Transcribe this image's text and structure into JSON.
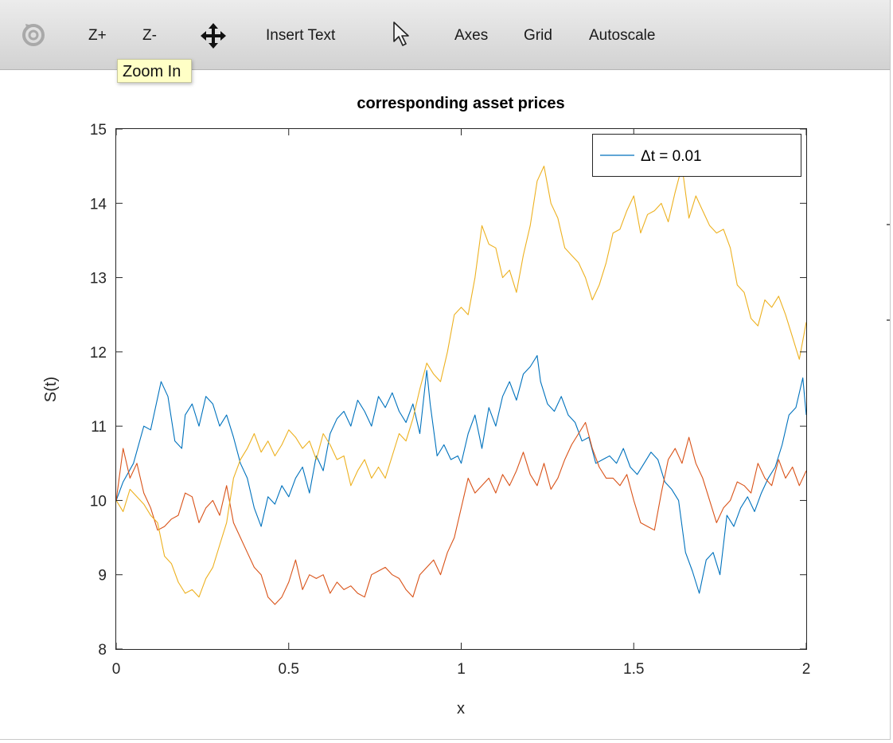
{
  "toolbar": {
    "items": [
      {
        "label": "Z+"
      },
      {
        "label": "Z-"
      },
      {
        "label": "Insert Text"
      },
      {
        "label": "Axes"
      },
      {
        "label": "Grid"
      },
      {
        "label": "Autoscale"
      }
    ],
    "tooltip": "Zoom In"
  },
  "chart_data": {
    "type": "line",
    "title": "corresponding asset prices",
    "xlabel": "x",
    "ylabel": "S(t)",
    "xlim": [
      0,
      2
    ],
    "ylim": [
      8,
      15
    ],
    "xticks": [
      0,
      0.5,
      1,
      1.5,
      2
    ],
    "xtick_labels": [
      "0",
      "0.5",
      "1",
      "1.5",
      "2"
    ],
    "yticks": [
      8,
      9,
      10,
      11,
      12,
      13,
      14,
      15
    ],
    "ytick_labels": [
      "8",
      "9",
      "10",
      "11",
      "12",
      "13",
      "14",
      "15"
    ],
    "grid": false,
    "legend": {
      "placement": "top-right",
      "entries": [
        "Δt = 0.01"
      ]
    },
    "series": [
      {
        "color": "#0072bd",
        "x": [
          0,
          0.02,
          0.05,
          0.08,
          0.1,
          0.13,
          0.15,
          0.17,
          0.19,
          0.2,
          0.22,
          0.24,
          0.26,
          0.28,
          0.3,
          0.32,
          0.34,
          0.36,
          0.38,
          0.4,
          0.42,
          0.44,
          0.46,
          0.48,
          0.5,
          0.52,
          0.54,
          0.56,
          0.58,
          0.6,
          0.62,
          0.64,
          0.66,
          0.68,
          0.7,
          0.72,
          0.74,
          0.76,
          0.78,
          0.8,
          0.82,
          0.84,
          0.86,
          0.88,
          0.9,
          0.91,
          0.93,
          0.95,
          0.97,
          0.99,
          1.0,
          1.02,
          1.04,
          1.06,
          1.08,
          1.1,
          1.12,
          1.14,
          1.16,
          1.18,
          1.2,
          1.22,
          1.23,
          1.25,
          1.27,
          1.29,
          1.31,
          1.33,
          1.35,
          1.37,
          1.39,
          1.41,
          1.43,
          1.45,
          1.47,
          1.49,
          1.51,
          1.53,
          1.55,
          1.57,
          1.59,
          1.61,
          1.63,
          1.65,
          1.67,
          1.69,
          1.71,
          1.73,
          1.75,
          1.77,
          1.79,
          1.81,
          1.83,
          1.85,
          1.87,
          1.89,
          1.91,
          1.93,
          1.95,
          1.97,
          1.99,
          2.0
        ],
        "y": [
          10.0,
          10.25,
          10.5,
          11.0,
          10.95,
          11.6,
          11.4,
          10.8,
          10.7,
          11.15,
          11.3,
          11.0,
          11.4,
          11.3,
          11.0,
          11.15,
          10.85,
          10.5,
          10.3,
          9.9,
          9.65,
          10.05,
          9.95,
          10.2,
          10.05,
          10.3,
          10.45,
          10.1,
          10.6,
          10.4,
          10.9,
          11.1,
          11.2,
          11.0,
          11.35,
          11.2,
          11.0,
          11.4,
          11.25,
          11.45,
          11.2,
          11.05,
          11.3,
          10.9,
          11.75,
          11.3,
          10.6,
          10.75,
          10.55,
          10.6,
          10.5,
          10.9,
          11.15,
          10.7,
          11.25,
          11.0,
          11.4,
          11.6,
          11.35,
          11.7,
          11.8,
          11.95,
          11.6,
          11.3,
          11.2,
          11.4,
          11.15,
          11.05,
          10.8,
          10.85,
          10.5,
          10.55,
          10.6,
          10.5,
          10.7,
          10.45,
          10.35,
          10.5,
          10.65,
          10.55,
          10.25,
          10.15,
          10.0,
          9.3,
          9.05,
          8.75,
          9.2,
          9.3,
          9.0,
          9.8,
          9.65,
          9.9,
          10.05,
          9.85,
          10.1,
          10.3,
          10.45,
          10.75,
          11.15,
          11.25,
          11.65,
          11.15
        ]
      },
      {
        "color": "#d95319",
        "x": [
          0,
          0.02,
          0.04,
          0.06,
          0.08,
          0.1,
          0.12,
          0.14,
          0.16,
          0.18,
          0.2,
          0.22,
          0.24,
          0.26,
          0.28,
          0.3,
          0.32,
          0.34,
          0.36,
          0.38,
          0.4,
          0.42,
          0.44,
          0.46,
          0.48,
          0.5,
          0.52,
          0.54,
          0.56,
          0.58,
          0.6,
          0.62,
          0.64,
          0.66,
          0.68,
          0.7,
          0.72,
          0.74,
          0.76,
          0.78,
          0.8,
          0.82,
          0.84,
          0.86,
          0.88,
          0.9,
          0.92,
          0.94,
          0.96,
          0.98,
          1.0,
          1.02,
          1.04,
          1.06,
          1.08,
          1.1,
          1.12,
          1.14,
          1.16,
          1.18,
          1.2,
          1.22,
          1.24,
          1.26,
          1.28,
          1.3,
          1.32,
          1.34,
          1.36,
          1.38,
          1.4,
          1.42,
          1.44,
          1.46,
          1.48,
          1.5,
          1.52,
          1.54,
          1.56,
          1.58,
          1.6,
          1.62,
          1.64,
          1.66,
          1.68,
          1.7,
          1.72,
          1.74,
          1.76,
          1.78,
          1.8,
          1.82,
          1.84,
          1.86,
          1.88,
          1.9,
          1.92,
          1.94,
          1.96,
          1.98,
          2.0
        ],
        "y": [
          10.0,
          10.7,
          10.3,
          10.5,
          10.1,
          9.9,
          9.6,
          9.65,
          9.75,
          9.8,
          10.1,
          10.05,
          9.7,
          9.9,
          10.0,
          9.8,
          10.2,
          9.7,
          9.5,
          9.3,
          9.1,
          9.0,
          8.7,
          8.6,
          8.7,
          8.9,
          9.2,
          8.8,
          9.0,
          8.95,
          9.0,
          8.75,
          8.9,
          8.8,
          8.85,
          8.75,
          8.7,
          9.0,
          9.05,
          9.1,
          9.0,
          8.95,
          8.8,
          8.7,
          9.0,
          9.1,
          9.2,
          9.0,
          9.3,
          9.5,
          9.9,
          10.3,
          10.1,
          10.2,
          10.3,
          10.1,
          10.35,
          10.2,
          10.4,
          10.65,
          10.35,
          10.2,
          10.5,
          10.15,
          10.3,
          10.55,
          10.75,
          10.9,
          11.05,
          10.7,
          10.45,
          10.3,
          10.3,
          10.2,
          10.35,
          10.0,
          9.7,
          9.65,
          9.6,
          10.1,
          10.55,
          10.7,
          10.5,
          10.85,
          10.5,
          10.3,
          10.0,
          9.7,
          9.9,
          10.0,
          10.25,
          10.2,
          10.1,
          10.5,
          10.3,
          10.2,
          10.55,
          10.3,
          10.45,
          10.2,
          10.4
        ]
      },
      {
        "color": "#edb120",
        "x": [
          0,
          0.02,
          0.04,
          0.06,
          0.08,
          0.1,
          0.12,
          0.14,
          0.16,
          0.18,
          0.2,
          0.22,
          0.24,
          0.26,
          0.28,
          0.3,
          0.32,
          0.34,
          0.36,
          0.38,
          0.4,
          0.42,
          0.44,
          0.46,
          0.48,
          0.5,
          0.52,
          0.54,
          0.56,
          0.58,
          0.6,
          0.62,
          0.64,
          0.66,
          0.68,
          0.7,
          0.72,
          0.74,
          0.76,
          0.78,
          0.8,
          0.82,
          0.84,
          0.86,
          0.88,
          0.9,
          0.92,
          0.94,
          0.96,
          0.98,
          1.0,
          1.02,
          1.04,
          1.06,
          1.08,
          1.1,
          1.12,
          1.14,
          1.16,
          1.18,
          1.2,
          1.22,
          1.24,
          1.26,
          1.28,
          1.3,
          1.32,
          1.34,
          1.36,
          1.38,
          1.4,
          1.42,
          1.44,
          1.46,
          1.48,
          1.5,
          1.52,
          1.54,
          1.56,
          1.58,
          1.6,
          1.62,
          1.64,
          1.66,
          1.68,
          1.7,
          1.72,
          1.74,
          1.76,
          1.78,
          1.8,
          1.82,
          1.84,
          1.86,
          1.88,
          1.9,
          1.92,
          1.94,
          1.96,
          1.98,
          2.0
        ],
        "y": [
          10.0,
          9.85,
          10.15,
          10.05,
          9.95,
          9.8,
          9.7,
          9.25,
          9.15,
          8.9,
          8.75,
          8.8,
          8.7,
          8.95,
          9.1,
          9.4,
          9.7,
          10.3,
          10.55,
          10.7,
          10.9,
          10.65,
          10.8,
          10.6,
          10.75,
          10.95,
          10.85,
          10.7,
          10.8,
          10.55,
          10.9,
          10.75,
          10.55,
          10.6,
          10.2,
          10.4,
          10.55,
          10.3,
          10.45,
          10.3,
          10.6,
          10.9,
          10.8,
          11.1,
          11.5,
          11.85,
          11.7,
          11.6,
          12.0,
          12.5,
          12.6,
          12.5,
          13.0,
          13.7,
          13.45,
          13.4,
          13.0,
          13.1,
          12.8,
          13.3,
          13.7,
          14.3,
          14.5,
          14.0,
          13.8,
          13.4,
          13.3,
          13.2,
          13.0,
          12.7,
          12.9,
          13.2,
          13.6,
          13.65,
          13.9,
          14.1,
          13.6,
          13.85,
          13.9,
          14.0,
          13.75,
          14.15,
          14.5,
          13.8,
          14.1,
          13.9,
          13.7,
          13.6,
          13.65,
          13.4,
          12.9,
          12.8,
          12.45,
          12.35,
          12.7,
          12.6,
          12.75,
          12.5,
          12.2,
          11.9,
          12.4
        ]
      }
    ]
  }
}
